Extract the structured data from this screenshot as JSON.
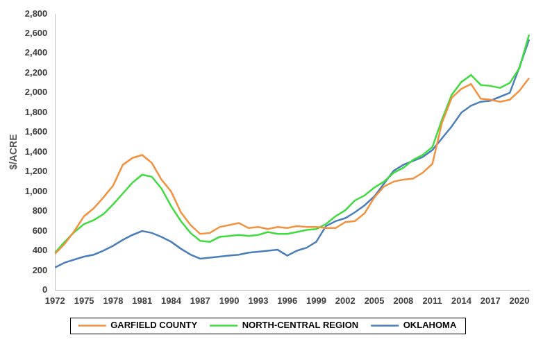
{
  "chart_data": {
    "type": "line",
    "y_label": "$/ACRE",
    "categories": [
      "1972",
      null,
      null,
      "1975",
      null,
      null,
      "1978",
      null,
      null,
      "1981",
      null,
      null,
      "1984",
      null,
      null,
      "1987",
      null,
      null,
      "1990",
      null,
      null,
      "1993",
      null,
      null,
      "1996",
      null,
      null,
      "1999",
      null,
      null,
      "2002",
      null,
      null,
      "2005",
      null,
      null,
      "2008",
      null,
      null,
      "2011",
      null,
      null,
      "2014",
      null,
      null,
      "2017",
      null,
      null,
      "2020",
      null
    ],
    "series": [
      {
        "name": "GARFIELD COUNTY",
        "color": "#f4913f",
        "values": [
          370,
          470,
          600,
          750,
          830,
          940,
          1060,
          1270,
          1340,
          1370,
          1290,
          1120,
          1000,
          790,
          660,
          570,
          580,
          640,
          660,
          680,
          630,
          640,
          620,
          640,
          630,
          650,
          640,
          640,
          630,
          630,
          690,
          700,
          780,
          940,
          1050,
          1100,
          1120,
          1130,
          1190,
          1280,
          1700,
          1950,
          2040,
          2090,
          1940,
          1930,
          1910,
          1930,
          2020,
          2150
        ]
      },
      {
        "name": "NORTH-CENTRAL REGION",
        "color": "#3fdc3f",
        "values": [
          380,
          490,
          590,
          670,
          710,
          770,
          870,
          980,
          1090,
          1170,
          1150,
          1030,
          850,
          700,
          580,
          500,
          490,
          540,
          550,
          560,
          550,
          560,
          590,
          570,
          570,
          590,
          610,
          620,
          670,
          750,
          810,
          910,
          960,
          1040,
          1100,
          1190,
          1240,
          1320,
          1370,
          1450,
          1730,
          1980,
          2110,
          2180,
          2080,
          2070,
          2050,
          2100,
          2250,
          2590
        ]
      },
      {
        "name": "OKLAHOMA",
        "color": "#4a7ebb",
        "values": [
          230,
          280,
          310,
          340,
          360,
          400,
          450,
          510,
          560,
          600,
          580,
          540,
          490,
          420,
          360,
          320,
          330,
          340,
          350,
          360,
          380,
          390,
          400,
          410,
          350,
          400,
          430,
          490,
          650,
          700,
          730,
          790,
          860,
          950,
          1080,
          1210,
          1270,
          1310,
          1350,
          1420,
          1540,
          1660,
          1800,
          1870,
          1910,
          1920,
          1960,
          2000,
          2260,
          2540
        ]
      }
    ],
    "ylim": [
      0,
      2800
    ],
    "yticks": [
      0,
      200,
      400,
      600,
      800,
      1000,
      1200,
      1400,
      1600,
      1800,
      2000,
      2200,
      2400,
      2600,
      2800
    ],
    "grid": false,
    "legend": "bottom"
  }
}
